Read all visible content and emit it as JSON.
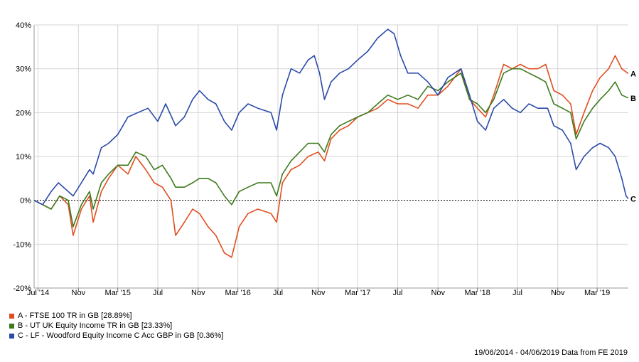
{
  "chart_data": {
    "type": "line",
    "y_unit": "%",
    "ylim": [
      -20,
      40
    ],
    "y_ticks": [
      -20,
      -10,
      0,
      10,
      20,
      30,
      40
    ],
    "y_tick_labels": [
      "-20%",
      "-10%",
      "0%",
      "10%",
      "20%",
      "30%",
      "40%"
    ],
    "x_range": [
      "2014-06-19",
      "2019-06-04"
    ],
    "x_ticks": [
      {
        "date": "2014-07-01",
        "label": "Jul '14"
      },
      {
        "date": "2014-11-01",
        "label": "Nov"
      },
      {
        "date": "2015-03-01",
        "label": "Mar '15"
      },
      {
        "date": "2015-07-01",
        "label": "Jul"
      },
      {
        "date": "2015-11-01",
        "label": "Nov"
      },
      {
        "date": "2016-03-01",
        "label": "Mar '16"
      },
      {
        "date": "2016-07-01",
        "label": "Jul"
      },
      {
        "date": "2016-11-01",
        "label": "Nov"
      },
      {
        "date": "2017-03-01",
        "label": "Mar '17"
      },
      {
        "date": "2017-07-01",
        "label": "Jul"
      },
      {
        "date": "2017-11-01",
        "label": "Nov"
      },
      {
        "date": "2018-03-01",
        "label": "Mar '18"
      },
      {
        "date": "2018-07-01",
        "label": "Jul"
      },
      {
        "date": "2018-11-01",
        "label": "Nov"
      },
      {
        "date": "2019-03-01",
        "label": "Mar '19"
      }
    ],
    "grid": true,
    "zero_line": true,
    "series": [
      {
        "id": "A",
        "name": "A - FTSE 100 TR in GB [28.89%]",
        "end_label": "A",
        "color": "#e04e1f",
        "points": [
          [
            "2014-06-19",
            0
          ],
          [
            "2014-07-15",
            -1
          ],
          [
            "2014-08-10",
            -2
          ],
          [
            "2014-09-05",
            1
          ],
          [
            "2014-10-01",
            -1
          ],
          [
            "2014-10-16",
            -8
          ],
          [
            "2014-11-10",
            -2
          ],
          [
            "2014-12-05",
            1
          ],
          [
            "2014-12-16",
            -5
          ],
          [
            "2015-01-10",
            2
          ],
          [
            "2015-02-01",
            5
          ],
          [
            "2015-03-01",
            8
          ],
          [
            "2015-04-01",
            6
          ],
          [
            "2015-04-25",
            10
          ],
          [
            "2015-05-25",
            7
          ],
          [
            "2015-06-20",
            4
          ],
          [
            "2015-07-15",
            3
          ],
          [
            "2015-08-10",
            0
          ],
          [
            "2015-08-24",
            -8
          ],
          [
            "2015-09-20",
            -5
          ],
          [
            "2015-10-15",
            -2
          ],
          [
            "2015-11-05",
            -3
          ],
          [
            "2015-12-01",
            -6
          ],
          [
            "2015-12-25",
            -8
          ],
          [
            "2016-01-20",
            -12
          ],
          [
            "2016-02-11",
            -13
          ],
          [
            "2016-03-05",
            -6
          ],
          [
            "2016-04-01",
            -3
          ],
          [
            "2016-05-01",
            -2
          ],
          [
            "2016-06-10",
            -3
          ],
          [
            "2016-06-27",
            -5
          ],
          [
            "2016-07-15",
            4
          ],
          [
            "2016-08-10",
            7
          ],
          [
            "2016-09-05",
            8
          ],
          [
            "2016-10-01",
            10
          ],
          [
            "2016-11-01",
            11
          ],
          [
            "2016-11-20",
            9
          ],
          [
            "2016-12-10",
            14
          ],
          [
            "2017-01-05",
            16
          ],
          [
            "2017-02-01",
            17
          ],
          [
            "2017-03-01",
            19
          ],
          [
            "2017-04-01",
            20
          ],
          [
            "2017-05-01",
            21
          ],
          [
            "2017-06-01",
            23
          ],
          [
            "2017-07-01",
            22
          ],
          [
            "2017-08-01",
            22
          ],
          [
            "2017-09-01",
            21
          ],
          [
            "2017-10-01",
            24
          ],
          [
            "2017-11-01",
            24
          ],
          [
            "2017-12-01",
            26
          ],
          [
            "2018-01-10",
            30
          ],
          [
            "2018-02-05",
            23
          ],
          [
            "2018-03-01",
            21
          ],
          [
            "2018-03-26",
            19
          ],
          [
            "2018-04-20",
            24
          ],
          [
            "2018-05-20",
            31
          ],
          [
            "2018-06-15",
            30
          ],
          [
            "2018-07-10",
            31
          ],
          [
            "2018-08-05",
            30
          ],
          [
            "2018-09-01",
            30
          ],
          [
            "2018-09-25",
            31
          ],
          [
            "2018-10-20",
            25
          ],
          [
            "2018-11-15",
            24
          ],
          [
            "2018-12-10",
            22
          ],
          [
            "2018-12-27",
            15
          ],
          [
            "2019-01-20",
            20
          ],
          [
            "2019-02-15",
            25
          ],
          [
            "2019-03-10",
            28
          ],
          [
            "2019-04-05",
            30
          ],
          [
            "2019-04-25",
            33
          ],
          [
            "2019-05-15",
            30
          ],
          [
            "2019-06-04",
            28.89
          ]
        ]
      },
      {
        "id": "B",
        "name": "B - UT UK Equity Income TR in GB [23.33%]",
        "end_label": "B",
        "color": "#3d7a1c",
        "points": [
          [
            "2014-06-19",
            0
          ],
          [
            "2014-07-15",
            -1
          ],
          [
            "2014-08-10",
            -2
          ],
          [
            "2014-09-05",
            1
          ],
          [
            "2014-10-01",
            0
          ],
          [
            "2014-10-16",
            -6
          ],
          [
            "2014-11-10",
            -1
          ],
          [
            "2014-12-05",
            2
          ],
          [
            "2014-12-16",
            -2
          ],
          [
            "2015-01-10",
            4
          ],
          [
            "2015-02-01",
            6
          ],
          [
            "2015-03-01",
            8
          ],
          [
            "2015-04-01",
            8
          ],
          [
            "2015-04-25",
            11
          ],
          [
            "2015-05-25",
            10
          ],
          [
            "2015-06-20",
            7
          ],
          [
            "2015-07-15",
            8
          ],
          [
            "2015-08-10",
            5
          ],
          [
            "2015-08-24",
            3
          ],
          [
            "2015-09-20",
            3
          ],
          [
            "2015-10-15",
            4
          ],
          [
            "2015-11-05",
            5
          ],
          [
            "2015-12-01",
            5
          ],
          [
            "2015-12-25",
            4
          ],
          [
            "2016-01-20",
            1
          ],
          [
            "2016-02-11",
            -1
          ],
          [
            "2016-03-05",
            2
          ],
          [
            "2016-04-01",
            3
          ],
          [
            "2016-05-01",
            4
          ],
          [
            "2016-06-10",
            4
          ],
          [
            "2016-06-27",
            1
          ],
          [
            "2016-07-15",
            6
          ],
          [
            "2016-08-10",
            9
          ],
          [
            "2016-09-05",
            11
          ],
          [
            "2016-10-01",
            13
          ],
          [
            "2016-11-01",
            13
          ],
          [
            "2016-11-20",
            11
          ],
          [
            "2016-12-10",
            15
          ],
          [
            "2017-01-05",
            17
          ],
          [
            "2017-02-01",
            18
          ],
          [
            "2017-03-01",
            19
          ],
          [
            "2017-04-01",
            20
          ],
          [
            "2017-05-01",
            22
          ],
          [
            "2017-06-01",
            24
          ],
          [
            "2017-07-01",
            23
          ],
          [
            "2017-08-01",
            24
          ],
          [
            "2017-09-01",
            23
          ],
          [
            "2017-10-01",
            26
          ],
          [
            "2017-11-01",
            25
          ],
          [
            "2017-12-01",
            27
          ],
          [
            "2018-01-10",
            29
          ],
          [
            "2018-02-05",
            23
          ],
          [
            "2018-03-01",
            22
          ],
          [
            "2018-03-26",
            20
          ],
          [
            "2018-04-20",
            23
          ],
          [
            "2018-05-20",
            29
          ],
          [
            "2018-06-15",
            30
          ],
          [
            "2018-07-10",
            30
          ],
          [
            "2018-08-05",
            29
          ],
          [
            "2018-09-01",
            28
          ],
          [
            "2018-09-25",
            27
          ],
          [
            "2018-10-20",
            22
          ],
          [
            "2018-11-15",
            21
          ],
          [
            "2018-12-10",
            20
          ],
          [
            "2018-12-27",
            14
          ],
          [
            "2019-01-20",
            18
          ],
          [
            "2019-02-15",
            21
          ],
          [
            "2019-03-10",
            23
          ],
          [
            "2019-04-05",
            25
          ],
          [
            "2019-04-25",
            27
          ],
          [
            "2019-05-15",
            24
          ],
          [
            "2019-06-04",
            23.33
          ]
        ]
      },
      {
        "id": "C",
        "name": "C - LF - Woodford Equity Income C Acc GBP in GB [0.36%]",
        "end_label": "C",
        "color": "#2a4aa8",
        "points": [
          [
            "2014-06-19",
            0
          ],
          [
            "2014-07-15",
            -1
          ],
          [
            "2014-08-10",
            2
          ],
          [
            "2014-09-01",
            4
          ],
          [
            "2014-10-01",
            2
          ],
          [
            "2014-10-16",
            1
          ],
          [
            "2014-11-10",
            4
          ],
          [
            "2014-12-05",
            7
          ],
          [
            "2014-12-16",
            6
          ],
          [
            "2015-01-10",
            12
          ],
          [
            "2015-02-01",
            13
          ],
          [
            "2015-03-01",
            15
          ],
          [
            "2015-04-01",
            19
          ],
          [
            "2015-05-01",
            20
          ],
          [
            "2015-06-01",
            21
          ],
          [
            "2015-07-01",
            18
          ],
          [
            "2015-07-25",
            22
          ],
          [
            "2015-08-24",
            17
          ],
          [
            "2015-09-20",
            19
          ],
          [
            "2015-10-15",
            23
          ],
          [
            "2015-11-05",
            25
          ],
          [
            "2015-12-01",
            23
          ],
          [
            "2015-12-25",
            22
          ],
          [
            "2016-01-20",
            18
          ],
          [
            "2016-02-11",
            16
          ],
          [
            "2016-03-05",
            20
          ],
          [
            "2016-04-01",
            22
          ],
          [
            "2016-05-01",
            21
          ],
          [
            "2016-06-10",
            20
          ],
          [
            "2016-06-27",
            16
          ],
          [
            "2016-07-15",
            24
          ],
          [
            "2016-08-10",
            30
          ],
          [
            "2016-09-05",
            29
          ],
          [
            "2016-10-01",
            32
          ],
          [
            "2016-10-20",
            33
          ],
          [
            "2016-11-05",
            29
          ],
          [
            "2016-11-20",
            23
          ],
          [
            "2016-12-10",
            27
          ],
          [
            "2017-01-05",
            29
          ],
          [
            "2017-02-01",
            30
          ],
          [
            "2017-03-01",
            32
          ],
          [
            "2017-04-01",
            34
          ],
          [
            "2017-05-01",
            37
          ],
          [
            "2017-06-01",
            39
          ],
          [
            "2017-06-20",
            38
          ],
          [
            "2017-07-10",
            33
          ],
          [
            "2017-08-01",
            29
          ],
          [
            "2017-09-01",
            29
          ],
          [
            "2017-10-01",
            27
          ],
          [
            "2017-11-01",
            24
          ],
          [
            "2017-12-01",
            28
          ],
          [
            "2018-01-10",
            30
          ],
          [
            "2018-02-05",
            24
          ],
          [
            "2018-03-01",
            18
          ],
          [
            "2018-03-26",
            16
          ],
          [
            "2018-04-20",
            21
          ],
          [
            "2018-05-20",
            23
          ],
          [
            "2018-06-15",
            21
          ],
          [
            "2018-07-10",
            20
          ],
          [
            "2018-08-05",
            22
          ],
          [
            "2018-09-01",
            21
          ],
          [
            "2018-10-01",
            21
          ],
          [
            "2018-10-20",
            17
          ],
          [
            "2018-11-15",
            16
          ],
          [
            "2018-12-10",
            13
          ],
          [
            "2018-12-27",
            7
          ],
          [
            "2019-01-20",
            10
          ],
          [
            "2019-02-15",
            12
          ],
          [
            "2019-03-10",
            13
          ],
          [
            "2019-04-05",
            12
          ],
          [
            "2019-04-25",
            10
          ],
          [
            "2019-05-15",
            5
          ],
          [
            "2019-05-28",
            1
          ],
          [
            "2019-06-04",
            0.36
          ]
        ]
      }
    ]
  },
  "footer": "19/06/2014 - 04/06/2019 Data from FE 2019"
}
